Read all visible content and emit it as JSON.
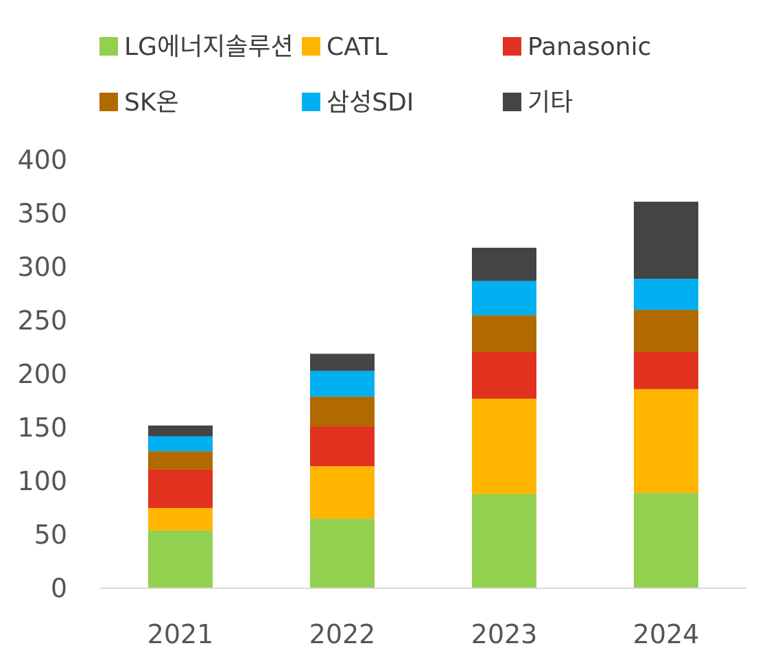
{
  "chart_data": {
    "type": "bar",
    "stacked": true,
    "title": "",
    "xlabel": "",
    "ylabel": "",
    "ylim": [
      0,
      400
    ],
    "yticks": [
      0,
      50,
      100,
      150,
      200,
      250,
      300,
      350,
      400
    ],
    "grid": false,
    "legend_position": "top",
    "categories": [
      "2021",
      "2022",
      "2023",
      "2024"
    ],
    "series": [
      {
        "name": "LG에너지솔루션",
        "color": "#92d050",
        "values": [
          54,
          65,
          88,
          89
        ]
      },
      {
        "name": "CATL",
        "color": "#ffb500",
        "values": [
          21,
          49,
          89,
          97
        ]
      },
      {
        "name": "Panasonic",
        "color": "#e0321e",
        "values": [
          36,
          37,
          44,
          35
        ]
      },
      {
        "name": "SK온",
        "color": "#b06a00",
        "values": [
          17,
          28,
          34,
          39
        ]
      },
      {
        "name": "삼성SDI",
        "color": "#00b0f0",
        "values": [
          14,
          24,
          32,
          29
        ]
      },
      {
        "name": "기타",
        "color": "#444444",
        "values": [
          10,
          16,
          31,
          72
        ]
      }
    ]
  }
}
